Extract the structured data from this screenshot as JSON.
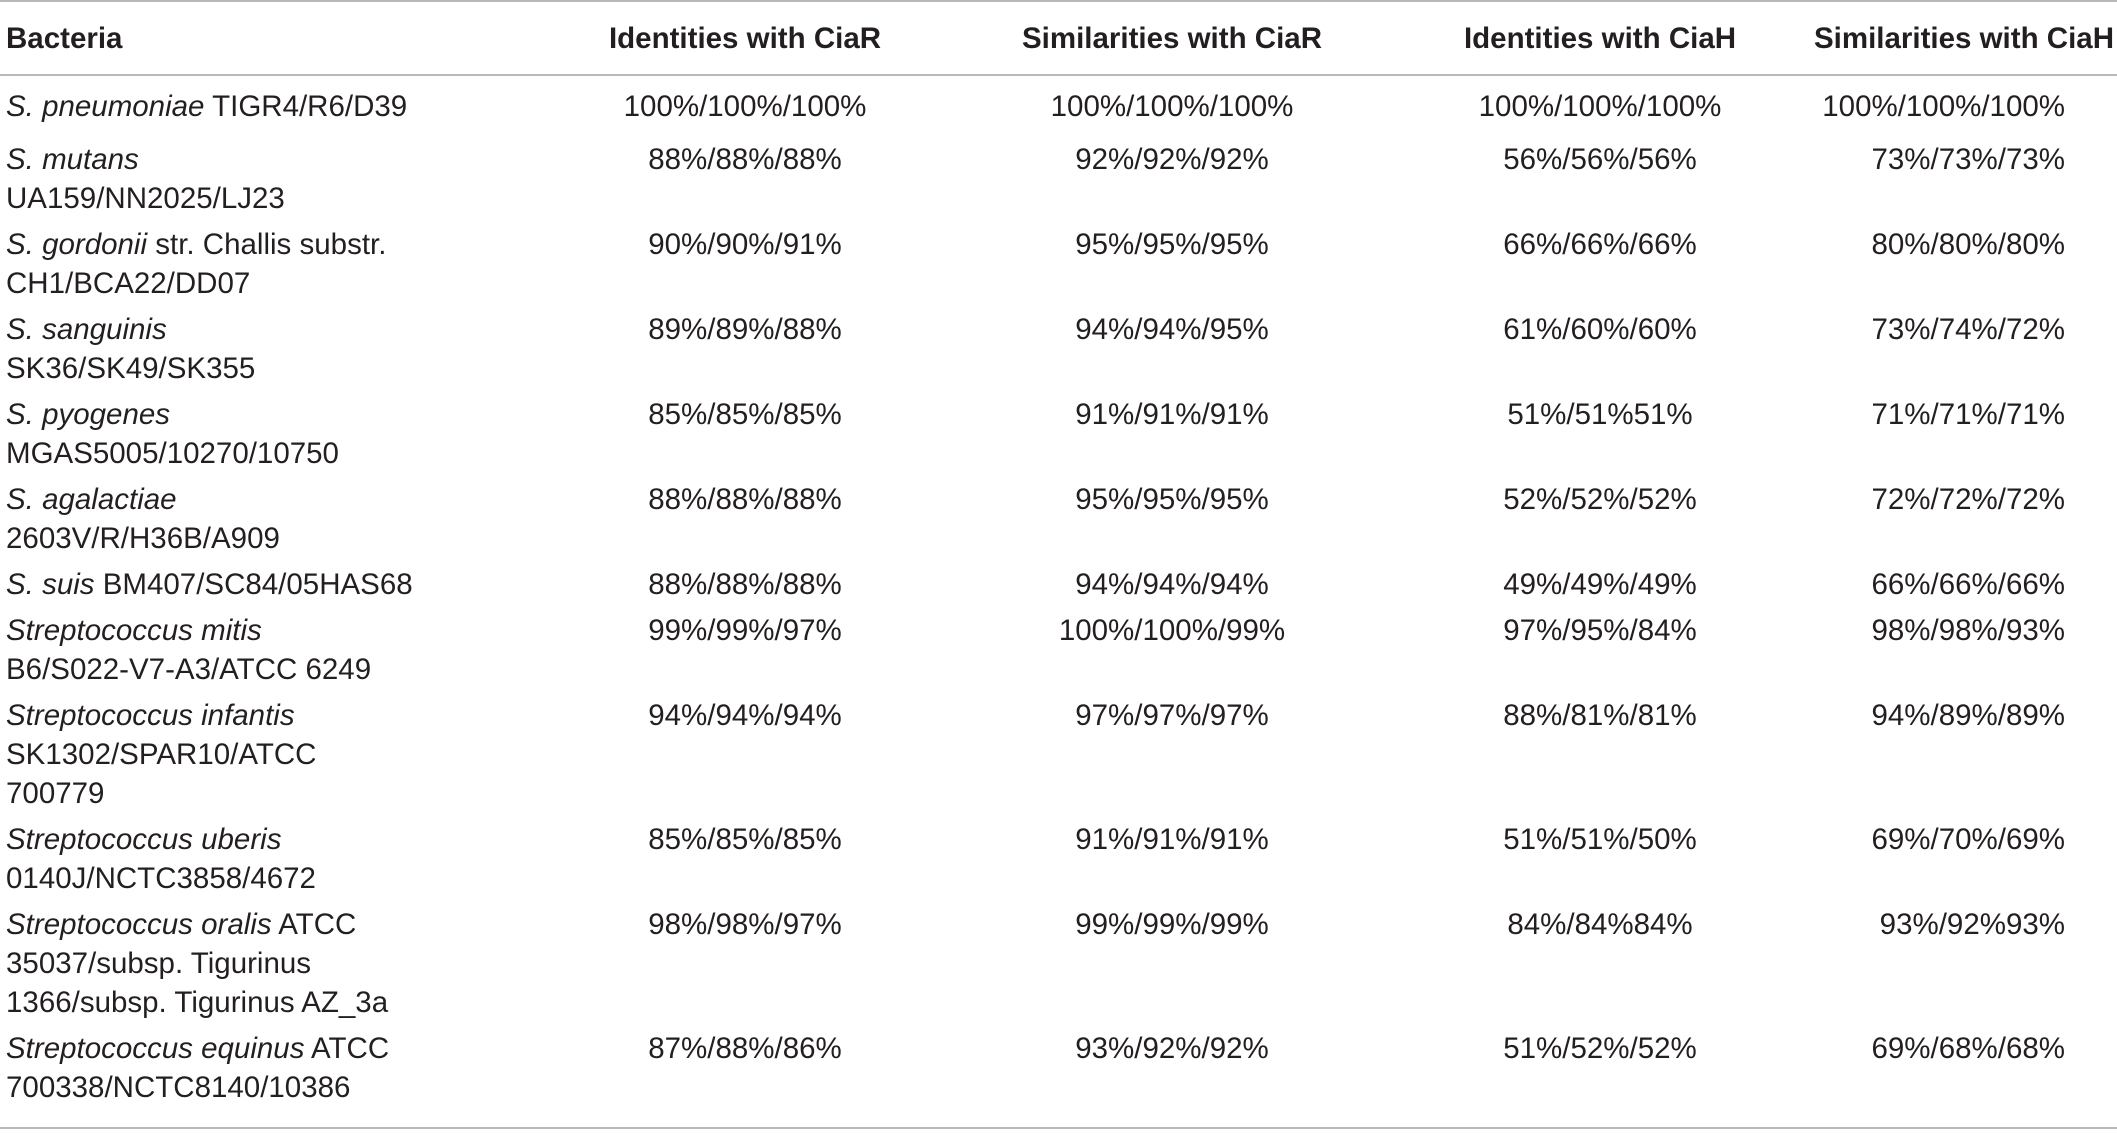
{
  "table": {
    "headers": [
      "Bacteria",
      "Identities with CiaR",
      "Similarities with CiaR",
      "Identities with CiaH",
      "Similarities with CiaH"
    ],
    "rows": [
      {
        "species_italic": "S. pneumoniae",
        "line1_rest": " TIGR4/R6/D39",
        "line2": "",
        "line3": "",
        "values": [
          "100%/100%/100%",
          "100%/100%/100%",
          "100%/100%/100%",
          "100%/100%/100%"
        ]
      },
      {
        "species_italic": "S. mutans",
        "line1_rest": "",
        "line2": "UA159/NN2025/LJ23",
        "line3": "",
        "values": [
          "88%/88%/88%",
          "92%/92%/92%",
          "56%/56%/56%",
          "73%/73%/73%"
        ]
      },
      {
        "species_italic": "S. gordonii",
        "line1_rest": " str. Challis substr.",
        "line2": "CH1/BCA22/DD07",
        "line3": "",
        "values": [
          "90%/90%/91%",
          "95%/95%/95%",
          "66%/66%/66%",
          "80%/80%/80%"
        ]
      },
      {
        "species_italic": "S. sanguinis",
        "line1_rest": "",
        "line2": "SK36/SK49/SK355",
        "line3": "",
        "values": [
          "89%/89%/88%",
          "94%/94%/95%",
          "61%/60%/60%",
          "73%/74%/72%"
        ]
      },
      {
        "species_italic": "S. pyogenes",
        "line1_rest": "",
        "line2": "MGAS5005/10270/10750",
        "line3": "",
        "values": [
          "85%/85%/85%",
          "91%/91%/91%",
          "51%/51%51%",
          "71%/71%/71%"
        ]
      },
      {
        "species_italic": "S. agalactiae",
        "line1_rest": "",
        "line2": "2603V/R/H36B/A909",
        "line3": "",
        "values": [
          "88%/88%/88%",
          "95%/95%/95%",
          "52%/52%/52%",
          "72%/72%/72%"
        ]
      },
      {
        "species_italic": "S. suis",
        "line1_rest": " BM407/SC84/05HAS68",
        "line2": "",
        "line3": "",
        "values": [
          "88%/88%/88%",
          "94%/94%/94%",
          "49%/49%/49%",
          "66%/66%/66%"
        ]
      },
      {
        "species_italic": "Streptococcus mitis",
        "line1_rest": "",
        "line2": "B6/S022-V7-A3/ATCC 6249",
        "line3": "",
        "values": [
          "99%/99%/97%",
          "100%/100%/99%",
          "97%/95%/84%",
          "98%/98%/93%"
        ]
      },
      {
        "species_italic": "Streptococcus infantis",
        "line1_rest": "",
        "line2": "SK1302/SPAR10/ATCC",
        "line3": "700779",
        "values": [
          "94%/94%/94%",
          "97%/97%/97%",
          "88%/81%/81%",
          "94%/89%/89%"
        ]
      },
      {
        "species_italic": "Streptococcus uberis",
        "line1_rest": "",
        "line2": "0140J/NCTC3858/4672",
        "line3": "",
        "values": [
          "85%/85%/85%",
          "91%/91%/91%",
          "51%/51%/50%",
          "69%/70%/69%"
        ]
      },
      {
        "species_italic": "Streptococcus oralis",
        "line1_rest": " ATCC",
        "line2": "35037/subsp. Tigurinus",
        "line3": "1366/subsp. Tigurinus AZ_3a",
        "values": [
          "98%/98%/97%",
          "99%/99%/99%",
          "84%/84%84%",
          "93%/92%93%"
        ]
      },
      {
        "species_italic": "Streptococcus equinus",
        "line1_rest": " ATCC",
        "line2": "700338/NCTC8140/10386",
        "line3": "",
        "values": [
          "87%/88%/86%",
          "93%/92%/92%",
          "51%/52%/52%",
          "69%/68%/68%"
        ]
      }
    ]
  }
}
